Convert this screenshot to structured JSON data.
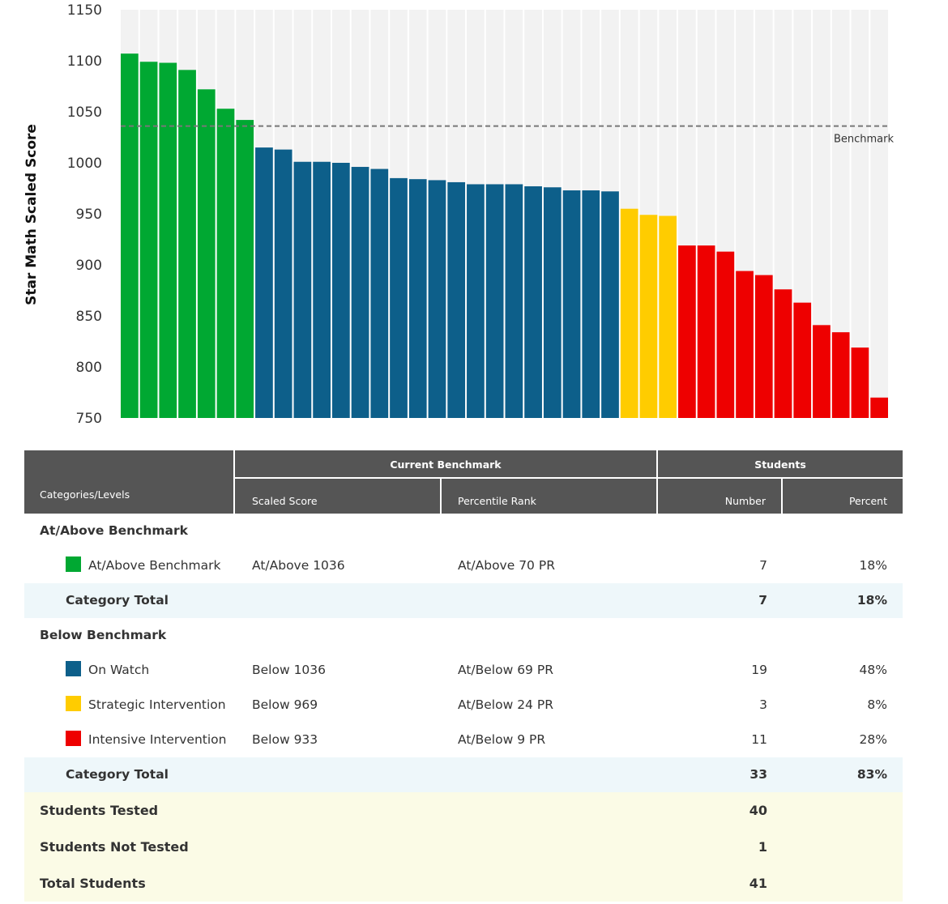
{
  "chart_data": {
    "type": "bar",
    "ylabel": "Star Math Scaled Score",
    "ylim": [
      750,
      1150
    ],
    "yticks": [
      750,
      800,
      850,
      900,
      950,
      1000,
      1050,
      1100,
      1150
    ],
    "benchmark": {
      "value": 1036,
      "label": "Benchmark"
    },
    "series": [
      {
        "name": "At/Above Benchmark",
        "color": "#00a832",
        "values": [
          1107,
          1099,
          1098,
          1091,
          1072,
          1053,
          1042
        ]
      },
      {
        "name": "On Watch",
        "color": "#0d5f8a",
        "values": [
          1015,
          1013,
          1001,
          1001,
          1000,
          996,
          994,
          985,
          984,
          983,
          981,
          979,
          979,
          979,
          977,
          976,
          973,
          973,
          972
        ]
      },
      {
        "name": "Strategic Intervention",
        "color": "#ffcc00",
        "values": [
          955,
          949,
          948
        ]
      },
      {
        "name": "Intensive Intervention",
        "color": "#ee0000",
        "values": [
          919,
          919,
          913,
          894,
          890,
          876,
          863,
          841,
          834,
          819,
          770
        ]
      }
    ]
  },
  "table": {
    "headers": {
      "categories": "Categories/Levels",
      "current_benchmark": "Current Benchmark",
      "students": "Students",
      "scaled_score": "Scaled Score",
      "percentile_rank": "Percentile Rank",
      "number": "Number",
      "percent": "Percent"
    },
    "at_above": {
      "title": "At/Above Benchmark",
      "rows": [
        {
          "label": "At/Above Benchmark",
          "color": "#00a832",
          "score": "At/Above 1036",
          "pr": "At/Above 70 PR",
          "number": "7",
          "percent": "18%"
        }
      ],
      "total": {
        "label": "Category Total",
        "number": "7",
        "percent": "18%"
      }
    },
    "below": {
      "title": "Below Benchmark",
      "rows": [
        {
          "label": "On Watch",
          "color": "#0d5f8a",
          "score": "Below 1036",
          "pr": "At/Below 69 PR",
          "number": "19",
          "percent": "48%"
        },
        {
          "label": "Strategic Intervention",
          "color": "#ffcc00",
          "score": "Below 969",
          "pr": "At/Below 24 PR",
          "number": "3",
          "percent": "8%"
        },
        {
          "label": "Intensive Intervention",
          "color": "#ee0000",
          "score": "Below 933",
          "pr": "At/Below 9 PR",
          "number": "11",
          "percent": "28%"
        }
      ],
      "total": {
        "label": "Category Total",
        "number": "33",
        "percent": "83%"
      }
    },
    "summary": [
      {
        "label": "Students Tested",
        "number": "40"
      },
      {
        "label": "Students Not Tested",
        "number": "1"
      },
      {
        "label": "Total Students",
        "number": "41"
      }
    ]
  }
}
